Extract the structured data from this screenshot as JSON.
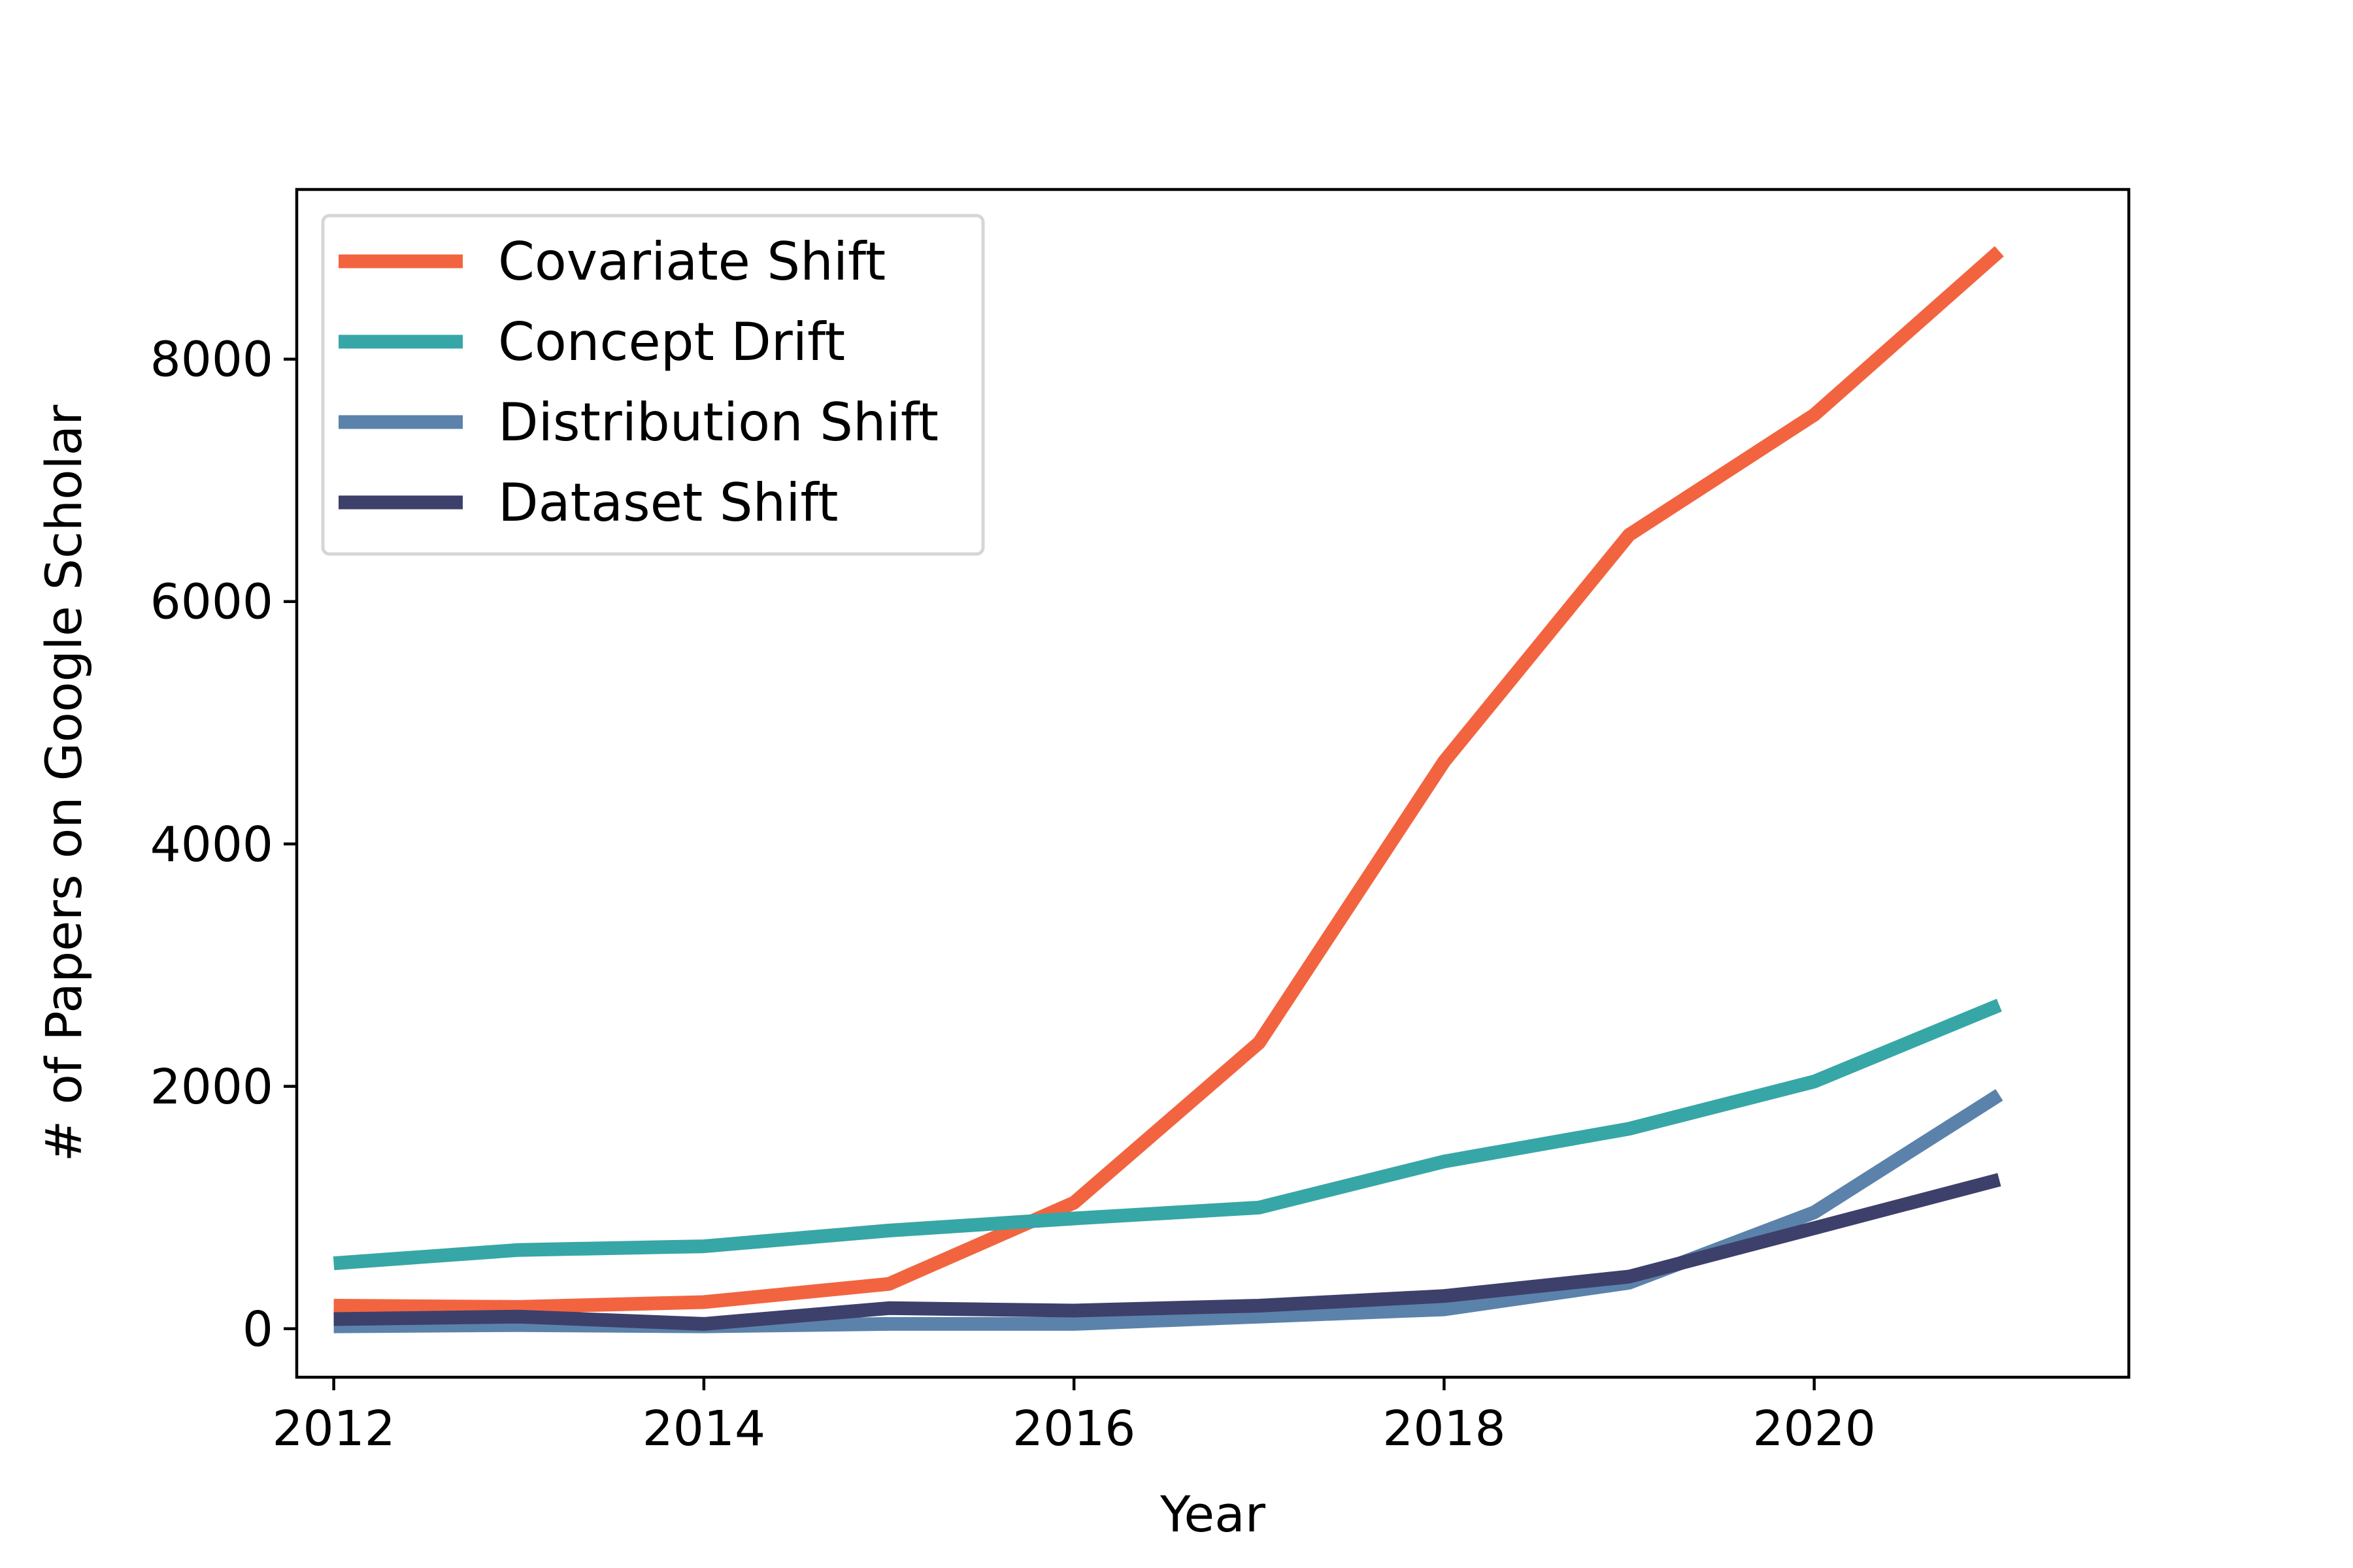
{
  "chart_data": {
    "type": "line",
    "title": "",
    "xlabel": "Year",
    "ylabel": "# of Papers on Google Scholar",
    "x": [
      2012,
      2013,
      2014,
      2015,
      2016,
      2017,
      2018,
      2019,
      2020,
      2021
    ],
    "xlim": [
      2011.8,
      2021.7
    ],
    "ylim": [
      -400,
      9400
    ],
    "xticks": [
      2012,
      2014,
      2016,
      2018,
      2020
    ],
    "yticks": [
      0,
      2000,
      4000,
      6000,
      8000
    ],
    "grid": false,
    "legend_position": "upper-left",
    "series": [
      {
        "name": "Covariate Shift",
        "color": "#f26440",
        "values": [
          190,
          180,
          220,
          370,
          1040,
          2360,
          4680,
          6550,
          7540,
          8890
        ]
      },
      {
        "name": "Concept Drift",
        "color": "#37a6a6",
        "values": [
          540,
          650,
          680,
          810,
          910,
          1000,
          1380,
          1650,
          2040,
          2670
        ]
      },
      {
        "name": "Distribution Shift",
        "color": "#5b82aa",
        "values": [
          20,
          30,
          20,
          40,
          40,
          100,
          160,
          380,
          960,
          1930
        ]
      },
      {
        "name": "Dataset Shift",
        "color": "#3d406a",
        "values": [
          80,
          100,
          40,
          170,
          150,
          190,
          270,
          430,
          830,
          1230
        ]
      }
    ]
  }
}
